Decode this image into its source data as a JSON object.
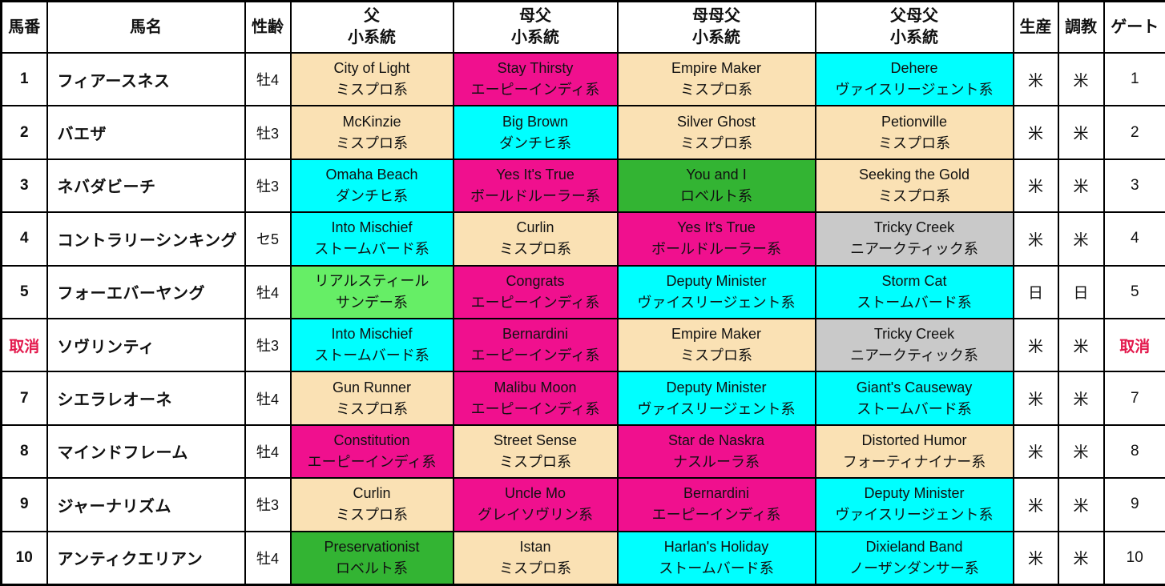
{
  "colors": {
    "cancel_red": "#e3174b",
    "lineage_palette": {
      "ミスプロ系": "#fae1b4",
      "フォーティナイナー系": "#fae1b4",
      "エーピーインディ系": "#f0108e",
      "ボールドルーラー系": "#f0108e",
      "ナスルーラ系": "#f0108e",
      "グレイソヴリン系": "#f0108e",
      "ダンチヒ系": "#00ffff",
      "ストームバード系": "#00ffff",
      "ヴァイスリージェント系": "#00ffff",
      "ノーザンダンサー系": "#00ffff",
      "ロベルト系": "#33b433",
      "サンデー系": "#66ee66",
      "ニアークティック系": "#c9c9c9"
    }
  },
  "table": {
    "columns": {
      "num": "馬番",
      "name": "馬名",
      "sex_age": "性齢",
      "sire": {
        "label": "父",
        "sub": "小系統"
      },
      "dam_sire": {
        "label": "母父",
        "sub": "小系統"
      },
      "dam_dam_sire": {
        "label": "母母父",
        "sub": "小系統"
      },
      "sire_dam_sire": {
        "label": "父母父",
        "sub": "小系統"
      },
      "breeding": "生産",
      "training": "調教",
      "gate": "ゲート"
    },
    "rows": [
      {
        "num": "1",
        "name": "フィアースネス",
        "sex_age": "牡4",
        "cancelled": false,
        "sire": {
          "horse": "City of Light",
          "line": "ミスプロ系",
          "color": "#fae1b4"
        },
        "dam_sire": {
          "horse": "Stay Thirsty",
          "line": "エーピーインディ系",
          "color": "#f0108e"
        },
        "dam_dam_sire": {
          "horse": "Empire Maker",
          "line": "ミスプロ系",
          "color": "#fae1b4"
        },
        "sire_dam_sire": {
          "horse": "Dehere",
          "line": "ヴァイスリージェント系",
          "color": "#00ffff"
        },
        "breeding": "米",
        "training": "米",
        "gate": "1"
      },
      {
        "num": "2",
        "name": "バエザ",
        "sex_age": "牡3",
        "cancelled": false,
        "sire": {
          "horse": "McKinzie",
          "line": "ミスプロ系",
          "color": "#fae1b4"
        },
        "dam_sire": {
          "horse": "Big Brown",
          "line": "ダンチヒ系",
          "color": "#00ffff"
        },
        "dam_dam_sire": {
          "horse": "Silver Ghost",
          "line": "ミスプロ系",
          "color": "#fae1b4"
        },
        "sire_dam_sire": {
          "horse": "Petionville",
          "line": "ミスプロ系",
          "color": "#fae1b4"
        },
        "breeding": "米",
        "training": "米",
        "gate": "2"
      },
      {
        "num": "3",
        "name": "ネバダビーチ",
        "sex_age": "牡3",
        "cancelled": false,
        "sire": {
          "horse": "Omaha Beach",
          "line": "ダンチヒ系",
          "color": "#00ffff"
        },
        "dam_sire": {
          "horse": "Yes It's True",
          "line": "ボールドルーラー系",
          "color": "#f0108e"
        },
        "dam_dam_sire": {
          "horse": "You and I",
          "line": "ロベルト系",
          "color": "#33b433"
        },
        "sire_dam_sire": {
          "horse": "Seeking the Gold",
          "line": "ミスプロ系",
          "color": "#fae1b4"
        },
        "breeding": "米",
        "training": "米",
        "gate": "3"
      },
      {
        "num": "4",
        "name": "コントラリーシンキング",
        "sex_age": "セ5",
        "cancelled": false,
        "sire": {
          "horse": "Into Mischief",
          "line": "ストームバード系",
          "color": "#00ffff"
        },
        "dam_sire": {
          "horse": "Curlin",
          "line": "ミスプロ系",
          "color": "#fae1b4"
        },
        "dam_dam_sire": {
          "horse": "Yes It's True",
          "line": "ボールドルーラー系",
          "color": "#f0108e"
        },
        "sire_dam_sire": {
          "horse": "Tricky Creek",
          "line": "ニアークティック系",
          "color": "#c9c9c9"
        },
        "breeding": "米",
        "training": "米",
        "gate": "4"
      },
      {
        "num": "5",
        "name": "フォーエバーヤング",
        "sex_age": "牡4",
        "cancelled": false,
        "sire": {
          "horse": "リアルスティール",
          "line": "サンデー系",
          "color": "#66ee66"
        },
        "dam_sire": {
          "horse": "Congrats",
          "line": "エーピーインディ系",
          "color": "#f0108e"
        },
        "dam_dam_sire": {
          "horse": "Deputy Minister",
          "line": "ヴァイスリージェント系",
          "color": "#00ffff"
        },
        "sire_dam_sire": {
          "horse": "Storm Cat",
          "line": "ストームバード系",
          "color": "#00ffff"
        },
        "breeding": "日",
        "training": "日",
        "gate": "5"
      },
      {
        "num": "取消",
        "name": "ソヴリンティ",
        "sex_age": "牡3",
        "cancelled": true,
        "sire": {
          "horse": "Into Mischief",
          "line": "ストームバード系",
          "color": "#00ffff"
        },
        "dam_sire": {
          "horse": "Bernardini",
          "line": "エーピーインディ系",
          "color": "#f0108e"
        },
        "dam_dam_sire": {
          "horse": "Empire Maker",
          "line": "ミスプロ系",
          "color": "#fae1b4"
        },
        "sire_dam_sire": {
          "horse": "Tricky Creek",
          "line": "ニアークティック系",
          "color": "#c9c9c9"
        },
        "breeding": "米",
        "training": "米",
        "gate": "取消"
      },
      {
        "num": "7",
        "name": "シエラレオーネ",
        "sex_age": "牡4",
        "cancelled": false,
        "sire": {
          "horse": "Gun Runner",
          "line": "ミスプロ系",
          "color": "#fae1b4"
        },
        "dam_sire": {
          "horse": "Malibu Moon",
          "line": "エーピーインディ系",
          "color": "#f0108e"
        },
        "dam_dam_sire": {
          "horse": "Deputy Minister",
          "line": "ヴァイスリージェント系",
          "color": "#00ffff"
        },
        "sire_dam_sire": {
          "horse": "Giant's Causeway",
          "line": "ストームバード系",
          "color": "#00ffff"
        },
        "breeding": "米",
        "training": "米",
        "gate": "7"
      },
      {
        "num": "8",
        "name": "マインドフレーム",
        "sex_age": "牡4",
        "cancelled": false,
        "sire": {
          "horse": "Constitution",
          "line": "エーピーインディ系",
          "color": "#f0108e"
        },
        "dam_sire": {
          "horse": "Street Sense",
          "line": "ミスプロ系",
          "color": "#fae1b4"
        },
        "dam_dam_sire": {
          "horse": "Star de Naskra",
          "line": "ナスルーラ系",
          "color": "#f0108e"
        },
        "sire_dam_sire": {
          "horse": "Distorted Humor",
          "line": "フォーティナイナー系",
          "color": "#fae1b4"
        },
        "breeding": "米",
        "training": "米",
        "gate": "8"
      },
      {
        "num": "9",
        "name": "ジャーナリズム",
        "sex_age": "牡3",
        "cancelled": false,
        "sire": {
          "horse": "Curlin",
          "line": "ミスプロ系",
          "color": "#fae1b4"
        },
        "dam_sire": {
          "horse": "Uncle Mo",
          "line": "グレイソヴリン系",
          "color": "#f0108e"
        },
        "dam_dam_sire": {
          "horse": "Bernardini",
          "line": "エーピーインディ系",
          "color": "#f0108e"
        },
        "sire_dam_sire": {
          "horse": "Deputy Minister",
          "line": "ヴァイスリージェント系",
          "color": "#00ffff"
        },
        "breeding": "米",
        "training": "米",
        "gate": "9"
      },
      {
        "num": "10",
        "name": "アンティクエリアン",
        "sex_age": "牡4",
        "cancelled": false,
        "sire": {
          "horse": "Preservationist",
          "line": "ロベルト系",
          "color": "#33b433"
        },
        "dam_sire": {
          "horse": "Istan",
          "line": "ミスプロ系",
          "color": "#fae1b4"
        },
        "dam_dam_sire": {
          "horse": "Harlan's Holiday",
          "line": "ストームバード系",
          "color": "#00ffff"
        },
        "sire_dam_sire": {
          "horse": "Dixieland Band",
          "line": "ノーザンダンサー系",
          "color": "#00ffff"
        },
        "breeding": "米",
        "training": "米",
        "gate": "10"
      }
    ]
  }
}
